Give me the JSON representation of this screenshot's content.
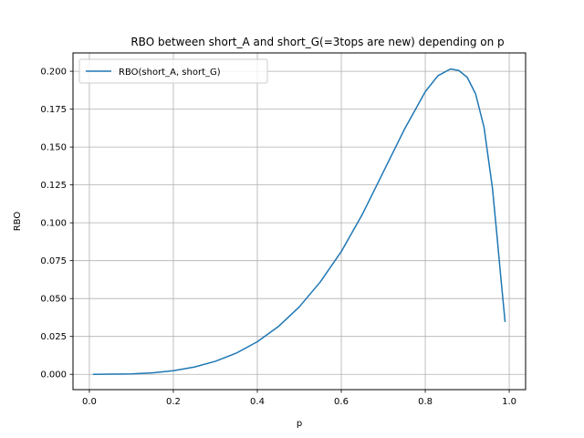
{
  "chart_data": {
    "type": "line",
    "title": "RBO between short_A and short_G(=3tops are new) depending on p",
    "xlabel": "p",
    "ylabel": "RBO",
    "xlim": [
      -0.039,
      1.039
    ],
    "ylim": [
      -0.0101,
      0.2121
    ],
    "xticks": [
      0.0,
      0.2,
      0.4,
      0.6,
      0.8,
      1.0
    ],
    "xtick_labels": [
      "0.0",
      "0.2",
      "0.4",
      "0.6",
      "0.8",
      "1.0"
    ],
    "yticks": [
      0.0,
      0.025,
      0.05,
      0.075,
      0.1,
      0.125,
      0.15,
      0.175,
      0.2
    ],
    "ytick_labels": [
      "0.000",
      "0.025",
      "0.050",
      "0.075",
      "0.100",
      "0.125",
      "0.150",
      "0.175",
      "0.200"
    ],
    "grid": true,
    "legend_position": "top-left",
    "series": [
      {
        "name": "RBO(short_A, short_G)",
        "color": "#1f77b4",
        "x": [
          0.01,
          0.05,
          0.1,
          0.15,
          0.2,
          0.25,
          0.3,
          0.35,
          0.4,
          0.45,
          0.5,
          0.55,
          0.6,
          0.65,
          0.7,
          0.75,
          0.8,
          0.83,
          0.86,
          0.88,
          0.9,
          0.92,
          0.94,
          0.96,
          0.97,
          0.98,
          0.99
        ],
        "y": [
          0.0,
          0.0001,
          0.0003,
          0.001,
          0.0024,
          0.0048,
          0.0086,
          0.014,
          0.0215,
          0.0315,
          0.0445,
          0.061,
          0.081,
          0.1055,
          0.1335,
          0.1615,
          0.1865,
          0.197,
          0.2015,
          0.2005,
          0.196,
          0.185,
          0.163,
          0.123,
          0.094,
          0.064,
          0.035
        ]
      }
    ]
  }
}
